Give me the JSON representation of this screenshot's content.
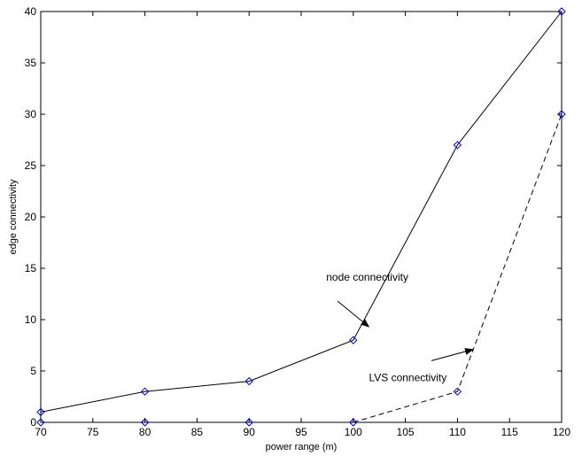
{
  "chart_data": {
    "type": "line",
    "title": "",
    "xlabel": "power range (m)",
    "ylabel": "edge connectivity",
    "xlim": [
      70,
      120
    ],
    "ylim": [
      0,
      40
    ],
    "xticks": [
      70,
      75,
      80,
      85,
      90,
      95,
      100,
      105,
      110,
      115,
      120
    ],
    "yticks": [
      0,
      5,
      10,
      15,
      20,
      25,
      30,
      35,
      40
    ],
    "grid": false,
    "x": [
      70,
      80,
      90,
      100,
      110,
      120
    ],
    "series": [
      {
        "values": [
          1,
          3,
          4,
          8,
          27,
          40
        ],
        "line_style": "solid",
        "line_color": "#000000",
        "marker": "diamond",
        "marker_color": "#0000cc"
      },
      {
        "values": [
          0,
          0,
          0,
          0,
          3,
          30
        ],
        "line_style": "dashed",
        "line_color": "#000000",
        "marker": "diamond",
        "marker_color": "#0000cc",
        "line_from_x": 100
      }
    ],
    "annotations": [
      {
        "text": "node connectivity",
        "text_at": [
          97.4,
          13.8
        ],
        "arrow_from": [
          98.5,
          11.8
        ],
        "arrow_to": [
          101.5,
          9.3
        ]
      },
      {
        "text": "LVS connectivity",
        "text_at": [
          101.5,
          4.0
        ],
        "arrow_from": [
          107.5,
          6.0
        ],
        "arrow_to": [
          111.5,
          7.1
        ]
      }
    ]
  }
}
